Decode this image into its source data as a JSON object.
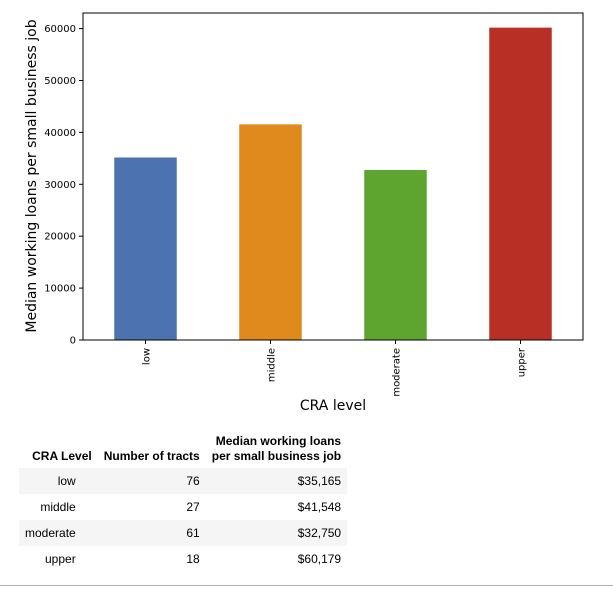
{
  "chart_data": {
    "type": "bar",
    "categories": [
      "low",
      "middle",
      "moderate",
      "upper"
    ],
    "values": [
      35165,
      41548,
      32750,
      60179
    ],
    "colors": [
      "#4c72b0",
      "#e08a1e",
      "#5da52e",
      "#b83025"
    ],
    "xlabel": "CRA level",
    "ylabel": "Median working loans per small business job",
    "ylim": [
      0,
      63000
    ],
    "yticks": [
      0,
      10000,
      20000,
      30000,
      40000,
      50000,
      60000
    ],
    "grid": false,
    "x_tick_rotation": "vertical"
  },
  "table": {
    "headers": [
      "CRA Level",
      "Number of tracts",
      "Median working loans\nper small business job"
    ],
    "header_line1": "Median working loans",
    "header_line2": "per small business job",
    "rows": [
      {
        "level": "low",
        "tracts": "76",
        "median": "$35,165"
      },
      {
        "level": "middle",
        "tracts": "27",
        "median": "$41,548"
      },
      {
        "level": "moderate",
        "tracts": "61",
        "median": "$32,750"
      },
      {
        "level": "upper",
        "tracts": "18",
        "median": "$60,179"
      }
    ]
  }
}
